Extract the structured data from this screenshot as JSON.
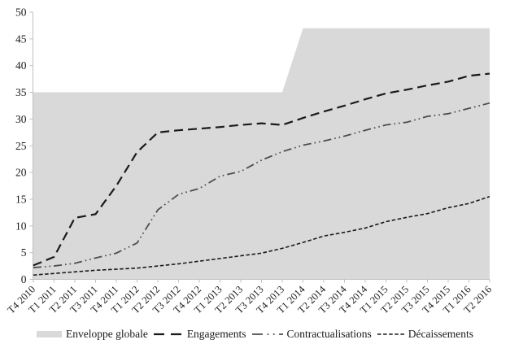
{
  "chart_data": {
    "type": "line",
    "title": "",
    "xlabel": "",
    "ylabel": "",
    "ylim": [
      0,
      50
    ],
    "ytick_step": 5,
    "yticks": [
      0,
      5,
      10,
      15,
      20,
      25,
      30,
      35,
      40,
      45,
      50
    ],
    "grid": false,
    "legend_position": "bottom",
    "axis_color": "#bfbfbf",
    "text_color": "#1a1a1a",
    "x": [
      "T4 2010",
      "T1 2011",
      "T2 2011",
      "T3 2011",
      "T4 2011",
      "T1 2012",
      "T2 2012",
      "T3 2012",
      "T4 2012",
      "T1 2013",
      "T2 2013",
      "T3 2013",
      "T4 2013",
      "T1 2014",
      "T2 2014",
      "T3 2014",
      "T4 2014",
      "T1 2015",
      "T2 2015",
      "T3 2015",
      "T4 2015",
      "T1 2016",
      "T2 2016"
    ],
    "series": [
      {
        "name": "Enveloppe globale",
        "type": "area",
        "color": "#d9d9d9",
        "values": [
          35,
          35,
          35,
          35,
          35,
          35,
          35,
          35,
          35,
          35,
          35,
          35,
          35,
          47,
          47,
          47,
          47,
          47,
          47,
          47,
          47,
          47,
          47
        ]
      },
      {
        "name": "Engagements",
        "type": "line",
        "dash": "long-dash",
        "color": "#1a1a1a",
        "values": [
          2.6,
          4.2,
          11.5,
          12.2,
          17.5,
          23.8,
          27.5,
          27.9,
          28.2,
          28.5,
          28.9,
          29.2,
          28.9,
          30.2,
          31.4,
          32.5,
          33.7,
          34.8,
          35.5,
          36.3,
          37.0,
          38.1,
          38.5
        ]
      },
      {
        "name": "Contractualisations",
        "type": "line",
        "dash": "dash-dot-dot",
        "color": "#4d4d4d",
        "values": [
          2.2,
          2.5,
          3.0,
          4.0,
          4.9,
          6.8,
          13.0,
          15.9,
          17.0,
          19.3,
          20.2,
          22.3,
          23.9,
          25.1,
          25.9,
          26.8,
          27.9,
          28.9,
          29.4,
          30.5,
          31.0,
          32.0,
          33.0
        ]
      },
      {
        "name": "Décaissements",
        "type": "line",
        "dash": "short-dash",
        "color": "#1a1a1a",
        "values": [
          0.8,
          1.1,
          1.4,
          1.7,
          1.9,
          2.1,
          2.5,
          2.9,
          3.4,
          3.9,
          4.4,
          4.9,
          5.8,
          6.9,
          8.1,
          8.8,
          9.6,
          10.8,
          11.6,
          12.3,
          13.4,
          14.2,
          15.5
        ]
      }
    ]
  }
}
